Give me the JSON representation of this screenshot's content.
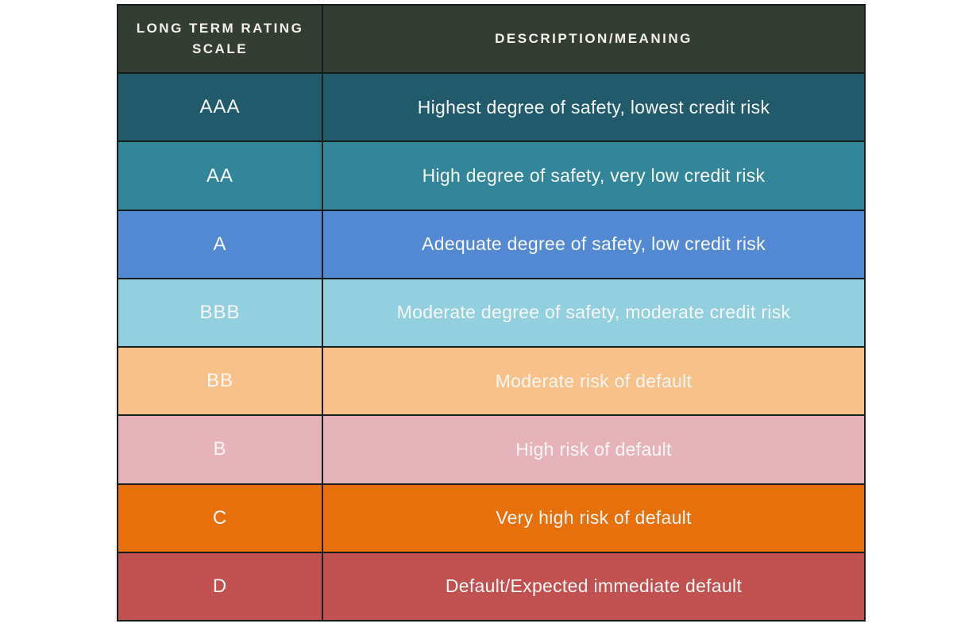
{
  "table": {
    "border_color": "#161d1c",
    "header": {
      "bg": "#343d34",
      "text_color": "#f4f1ea",
      "columns": [
        {
          "label": "LONG TERM RATING SCALE"
        },
        {
          "label": "DESCRIPTION/MEANING"
        }
      ]
    },
    "rows": [
      {
        "rating": "AAA",
        "description": "Highest degree of safety, lowest credit risk",
        "bg": "#215a6a"
      },
      {
        "rating": "AA",
        "description": "High degree of safety, very low credit risk",
        "bg": "#338599"
      },
      {
        "rating": "A",
        "description": "Adequate degree of safety, low credit risk",
        "bg": "#5389d2"
      },
      {
        "rating": "BBB",
        "description": "Moderate degree of safety, moderate credit risk",
        "bg": "#92cfdf"
      },
      {
        "rating": "BB",
        "description": "Moderate risk of default",
        "bg": "#f8c189"
      },
      {
        "rating": "B",
        "description": "High risk of default",
        "bg": "#e7b3ba"
      },
      {
        "rating": "C",
        "description": "Very high risk of default",
        "bg": "#e7700a"
      },
      {
        "rating": "D",
        "description": "Default/Expected immediate default",
        "bg": "#c05150"
      }
    ]
  }
}
